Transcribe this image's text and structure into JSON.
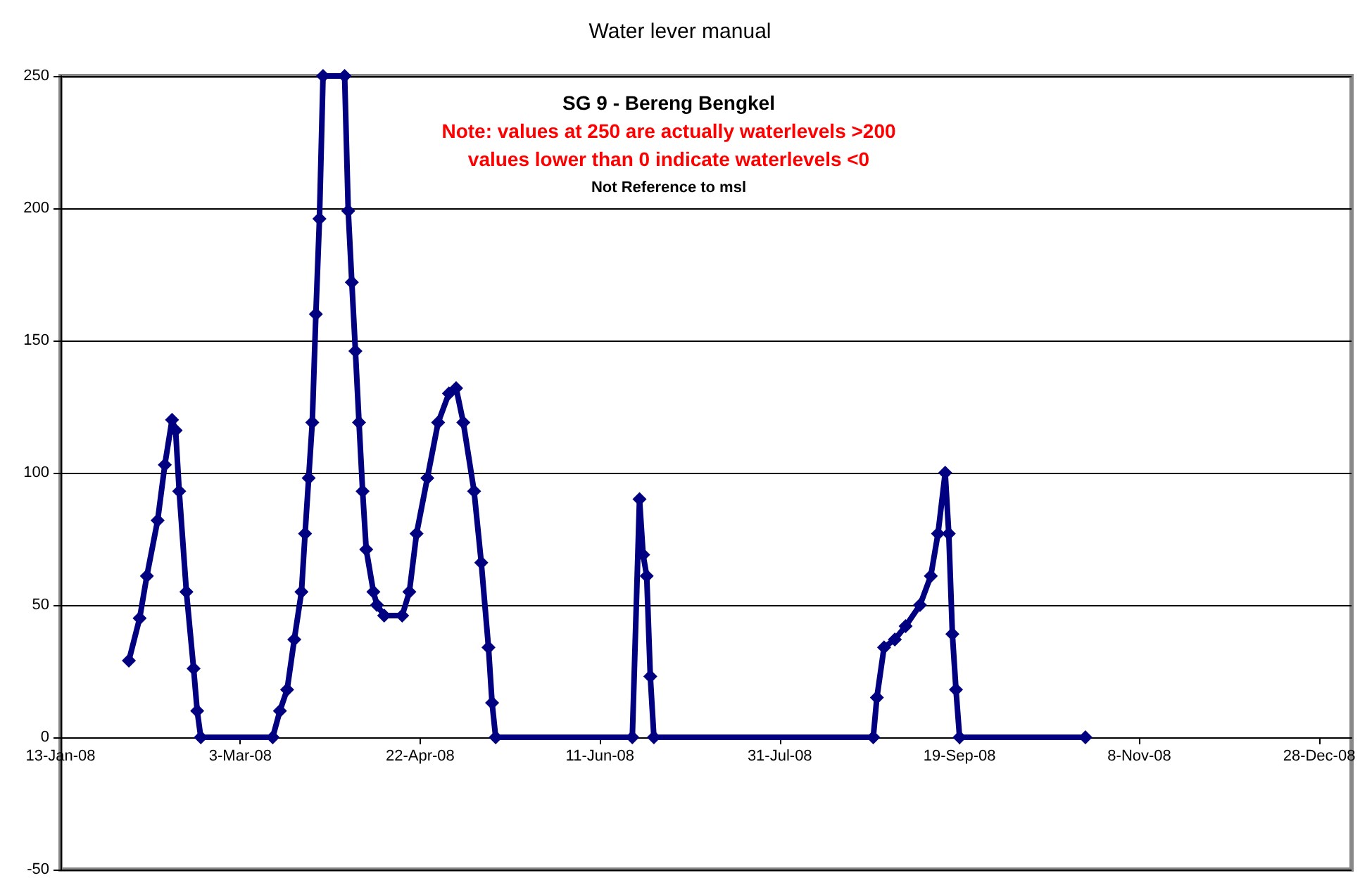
{
  "chart_data": {
    "type": "line",
    "title": "Water lever manual",
    "annotations": [
      "SG 9 - Bereng Bengkel",
      "Note: values at 250 are actually waterlevels >200",
      "values lower than 0 indicate waterlevels <0",
      "Not Reference to msl"
    ],
    "x": [
      "2008-02-01",
      "2008-02-04",
      "2008-02-06",
      "2008-02-09",
      "2008-02-11",
      "2008-02-13",
      "2008-02-14",
      "2008-02-15",
      "2008-02-17",
      "2008-02-19",
      "2008-02-20",
      "2008-02-21",
      "2008-03-12",
      "2008-03-14",
      "2008-03-16",
      "2008-03-18",
      "2008-03-20",
      "2008-03-21",
      "2008-03-22",
      "2008-03-23",
      "2008-03-24",
      "2008-03-25",
      "2008-03-26",
      "2008-04-01",
      "2008-04-02",
      "2008-04-03",
      "2008-04-04",
      "2008-04-05",
      "2008-04-06",
      "2008-04-07",
      "2008-04-09",
      "2008-04-10",
      "2008-04-12",
      "2008-04-17",
      "2008-04-19",
      "2008-04-21",
      "2008-04-24",
      "2008-04-27",
      "2008-04-30",
      "2008-05-02",
      "2008-05-04",
      "2008-05-07",
      "2008-05-09",
      "2008-05-11",
      "2008-05-12",
      "2008-05-13",
      "2008-06-20",
      "2008-06-22",
      "2008-06-23",
      "2008-06-24",
      "2008-06-25",
      "2008-06-26",
      "2008-08-26",
      "2008-08-27",
      "2008-08-29",
      "2008-09-01",
      "2008-09-04",
      "2008-09-08",
      "2008-09-11",
      "2008-09-13",
      "2008-09-15",
      "2008-09-16",
      "2008-09-17",
      "2008-09-18",
      "2008-09-19",
      "2008-10-24"
    ],
    "series": [
      {
        "color": "#000080",
        "values": [
          29,
          45,
          61,
          82,
          103,
          120,
          116,
          93,
          55,
          26,
          10,
          0,
          0,
          10,
          18,
          37,
          55,
          77,
          98,
          119,
          160,
          196,
          250,
          250,
          199,
          172,
          146,
          119,
          93,
          71,
          55,
          50,
          46,
          46,
          55,
          77,
          98,
          119,
          130,
          132,
          119,
          93,
          66,
          34,
          13,
          0,
          0,
          90,
          69,
          61,
          23,
          0,
          0,
          15,
          34,
          37,
          42,
          50,
          61,
          77,
          100,
          77,
          39,
          18,
          0,
          0
        ]
      }
    ],
    "xlim": [
      "2008-01-13",
      "2009-01-06"
    ],
    "xticks": [
      {
        "value": "2008-01-13",
        "label": "13-Jan-08"
      },
      {
        "value": "2008-03-03",
        "label": "3-Mar-08"
      },
      {
        "value": "2008-04-22",
        "label": "22-Apr-08"
      },
      {
        "value": "2008-06-11",
        "label": "11-Jun-08"
      },
      {
        "value": "2008-07-31",
        "label": "31-Jul-08"
      },
      {
        "value": "2008-09-19",
        "label": "19-Sep-08"
      },
      {
        "value": "2008-11-08",
        "label": "8-Nov-08"
      },
      {
        "value": "2008-12-28",
        "label": "28-Dec-08"
      }
    ],
    "ylim": [
      -50,
      250
    ],
    "yticks": [
      -50,
      0,
      50,
      100,
      150,
      200,
      250
    ],
    "grid": "y",
    "marker": "diamond",
    "line_style": "solid"
  }
}
